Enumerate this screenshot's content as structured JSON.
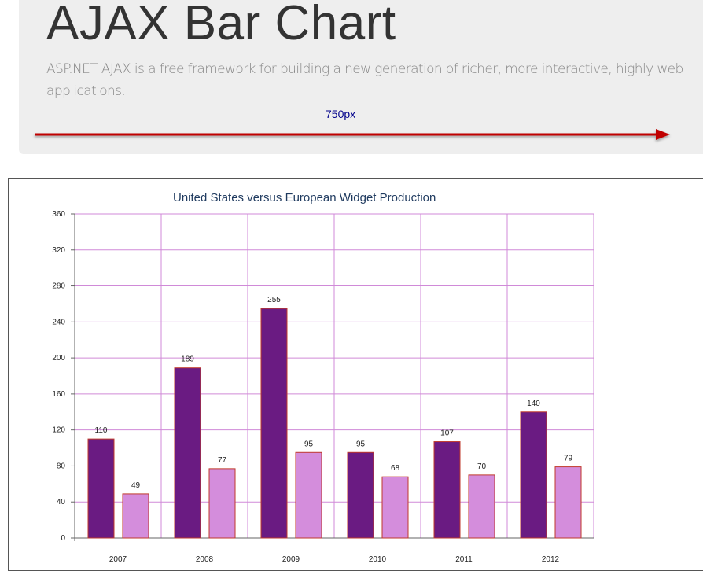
{
  "header": {
    "title": "AJAX Bar Chart",
    "lead": "ASP.NET AJAX is a free framework for building a new generation of richer, more interactive, highly web applications.",
    "width_label": "750px"
  },
  "colors": {
    "series_us": "#6a1b82",
    "series_eu": "#d48ddc",
    "bar_border": "#c0392b",
    "grid": "#d08ad8",
    "arrow": "#c00000"
  },
  "chart_data": {
    "type": "bar",
    "title": "United States versus European Widget Production",
    "categories": [
      "2007",
      "2008",
      "2009",
      "2010",
      "2011",
      "2012"
    ],
    "series": [
      {
        "values": [
          110,
          189,
          255,
          95,
          107,
          140
        ]
      },
      {
        "values": [
          49,
          77,
          95,
          68,
          70,
          79
        ]
      }
    ],
    "ylim": [
      0,
      360
    ],
    "yticks": [
      "0",
      "40",
      "80",
      "120",
      "160",
      "200",
      "240",
      "280",
      "320",
      "360"
    ],
    "data_labels": true,
    "grid": true,
    "xlabel": "",
    "ylabel": ""
  }
}
